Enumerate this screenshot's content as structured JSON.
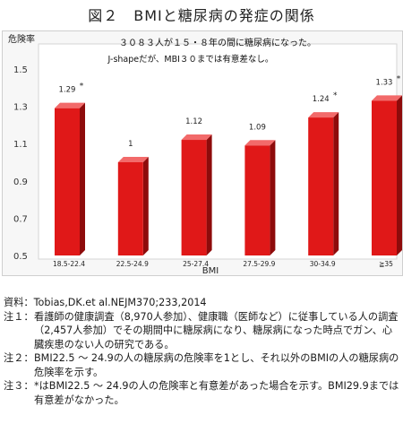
{
  "figure_title": "図２　BMIと糖尿病の発症の関係",
  "colors": {
    "bar": "#e01818",
    "bar_dark": "#8e0b0b",
    "bar_top": "#f26a6a",
    "plot_bg": "#ffffff",
    "frame_bg": "#f7f7f7"
  },
  "chart_data": {
    "type": "bar",
    "title": "３０８３人が１５・８年の間に糖尿病になった。",
    "subtitle": "J-shapeだが、MBI３０までは有意差なし。",
    "ylabel": "危険率",
    "xlabel": "BMI",
    "ylim": [
      0.5,
      1.5
    ],
    "yticks": [
      "1.5",
      "1.3",
      "1.1",
      "0.9",
      "0.7",
      "0.5"
    ],
    "categories": [
      "18.5-22.4",
      "22.5-24.9",
      "25-27.4",
      "27.5-29.9",
      "30-34.9",
      "≧35"
    ],
    "values": [
      1.29,
      1,
      1.12,
      1.09,
      1.24,
      1.33
    ],
    "data_labels": [
      "1.29",
      "1",
      "1.12",
      "1.09",
      "1.24",
      "1.33"
    ],
    "significant": [
      true,
      false,
      false,
      false,
      true,
      true
    ],
    "significance_marker": "*",
    "grid": false
  },
  "notes": {
    "source_label": "資料：",
    "source_text": "Tobias,DK.et al.NEJM370;233,2014",
    "items": [
      {
        "label": "注１：",
        "text": "看護師の健康調査（8,970人参加）、健康職（医師など）に従事している人の調査（2,457人参加）でその期間中に糖尿病になり、糖尿病になった時点でガン、心臓疾患のない人の研究である。"
      },
      {
        "label": "注２：",
        "text": "BMI22.5 ～ 24.9の人の糖尿病の危険率を1とし、それ以外のBMIの人の糖尿病の危険率を示す。"
      },
      {
        "label": "注３：",
        "text": "*はBMI22.5 ～ 24.9の人の危険率と有意差があった場合を示す。BMI29.9までは有意差がなかった。"
      }
    ]
  }
}
